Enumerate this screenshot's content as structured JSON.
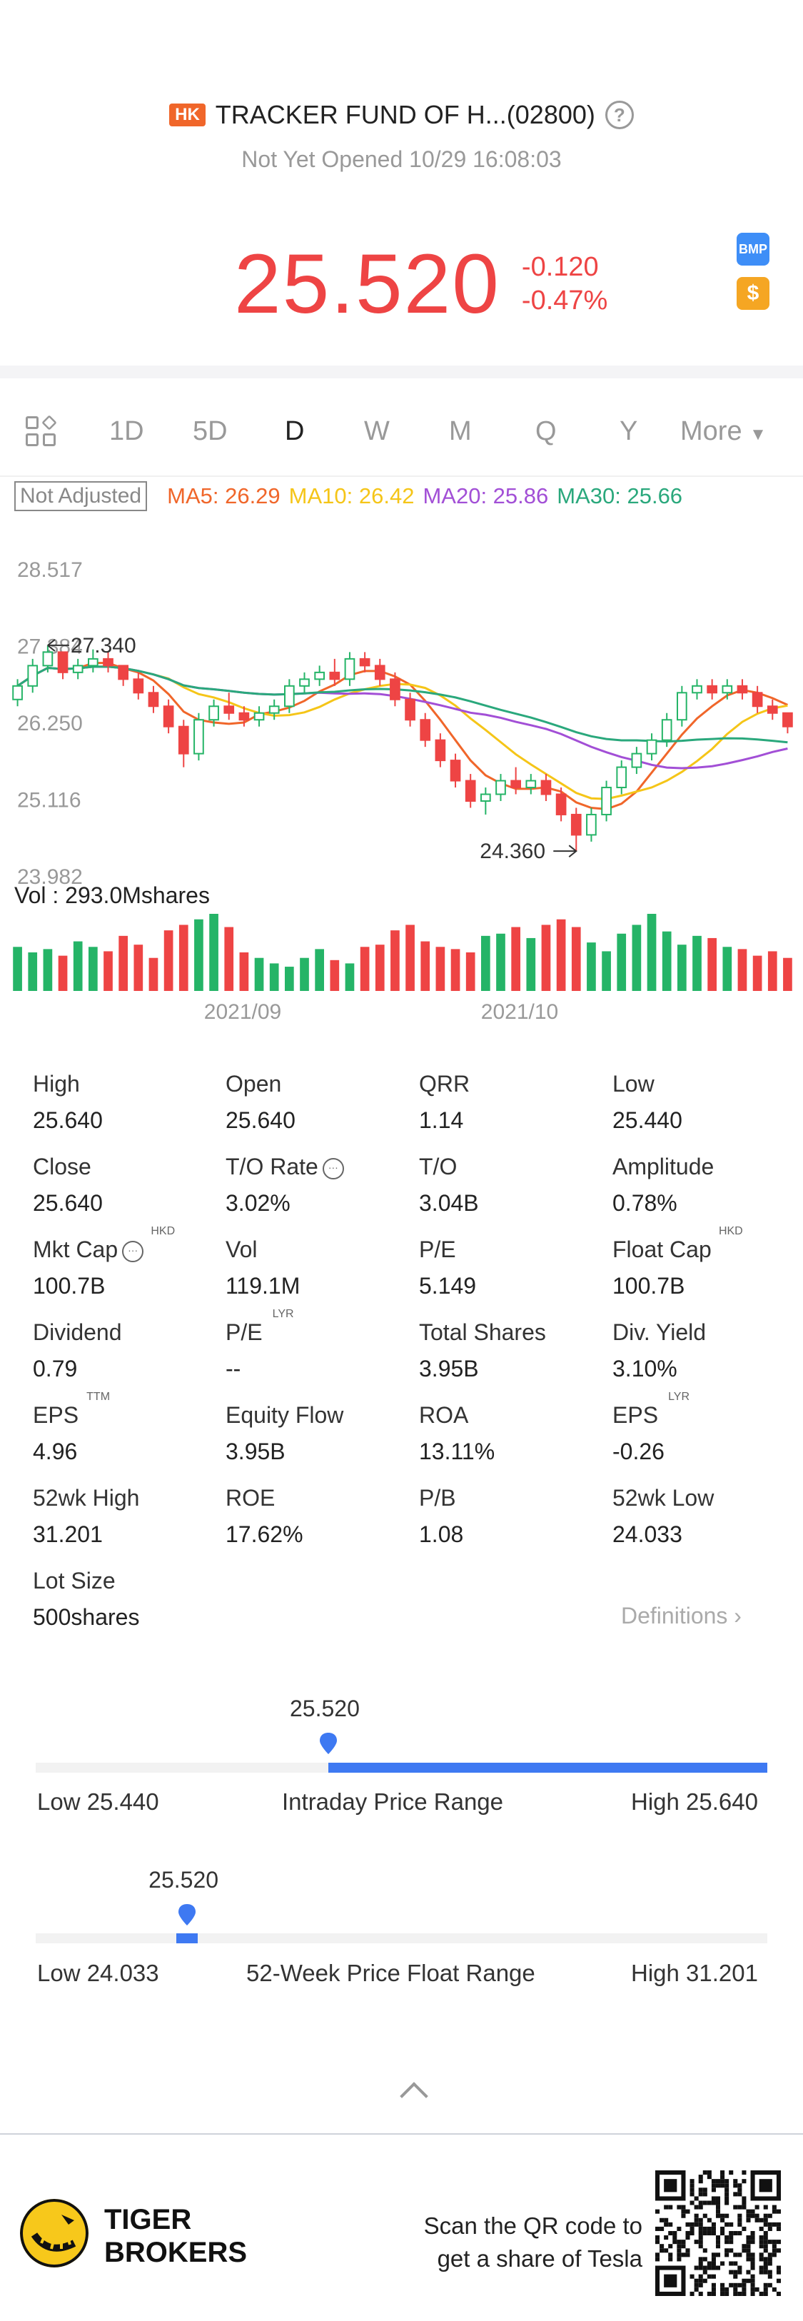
{
  "header": {
    "market_badge": "HK",
    "title": "TRACKER FUND OF H...(02800)",
    "status": "Not Yet Opened 10/29 16:08:03",
    "price": "25.520",
    "change": "-0.120",
    "change_pct": "-0.47%",
    "badge_bmp": "BMP",
    "badge_dollar": "$"
  },
  "tabs": {
    "items": [
      "1D",
      "5D",
      "D",
      "W",
      "M",
      "Q",
      "Y"
    ],
    "active": "D",
    "more": "More"
  },
  "ma": {
    "adjust_label": "Not Adjusted",
    "ma5": "MA5: 26.29",
    "ma10": "MA10: 26.42",
    "ma20": "MA20: 25.86",
    "ma30": "MA30: 25.66",
    "colors": {
      "ma5": "#f0662a",
      "ma10": "#f5c518",
      "ma20": "#a24fd6",
      "ma30": "#2aa87c"
    }
  },
  "chart_data": {
    "type": "candlestick",
    "y_ticks": [
      "28.517",
      "27.384",
      "26.250",
      "25.116",
      "23.982"
    ],
    "x_ticks": [
      "2021/09",
      "2021/10"
    ],
    "high_annotation": "27.340",
    "low_annotation": "24.360",
    "ylim": [
      23.982,
      28.517
    ],
    "candles": [
      [
        26.6,
        26.9,
        26.5,
        26.8
      ],
      [
        26.8,
        27.2,
        26.7,
        27.1
      ],
      [
        27.1,
        27.4,
        27.0,
        27.3
      ],
      [
        27.3,
        27.3,
        26.9,
        27.0
      ],
      [
        27.0,
        27.2,
        26.9,
        27.1
      ],
      [
        27.1,
        27.34,
        27.0,
        27.2
      ],
      [
        27.2,
        27.3,
        27.0,
        27.1
      ],
      [
        27.1,
        27.1,
        26.8,
        26.9
      ],
      [
        26.9,
        27.0,
        26.6,
        26.7
      ],
      [
        26.7,
        26.8,
        26.4,
        26.5
      ],
      [
        26.5,
        26.6,
        26.1,
        26.2
      ],
      [
        26.2,
        26.3,
        25.6,
        25.8
      ],
      [
        25.8,
        26.4,
        25.7,
        26.3
      ],
      [
        26.3,
        26.6,
        26.2,
        26.5
      ],
      [
        26.5,
        26.7,
        26.3,
        26.4
      ],
      [
        26.4,
        26.5,
        26.2,
        26.3
      ],
      [
        26.3,
        26.5,
        26.2,
        26.4
      ],
      [
        26.4,
        26.6,
        26.3,
        26.5
      ],
      [
        26.5,
        26.9,
        26.4,
        26.8
      ],
      [
        26.8,
        27.0,
        26.7,
        26.9
      ],
      [
        26.9,
        27.1,
        26.8,
        27.0
      ],
      [
        27.0,
        27.2,
        26.8,
        26.9
      ],
      [
        26.9,
        27.3,
        26.8,
        27.2
      ],
      [
        27.2,
        27.3,
        27.0,
        27.1
      ],
      [
        27.1,
        27.2,
        26.8,
        26.9
      ],
      [
        26.9,
        27.0,
        26.5,
        26.6
      ],
      [
        26.6,
        26.7,
        26.2,
        26.3
      ],
      [
        26.3,
        26.4,
        25.9,
        26.0
      ],
      [
        26.0,
        26.1,
        25.6,
        25.7
      ],
      [
        25.7,
        25.8,
        25.3,
        25.4
      ],
      [
        25.4,
        25.5,
        25.0,
        25.1
      ],
      [
        25.1,
        25.3,
        24.9,
        25.2
      ],
      [
        25.2,
        25.5,
        25.1,
        25.4
      ],
      [
        25.4,
        25.6,
        25.2,
        25.3
      ],
      [
        25.3,
        25.5,
        25.2,
        25.4
      ],
      [
        25.4,
        25.5,
        25.1,
        25.2
      ],
      [
        25.2,
        25.3,
        24.8,
        24.9
      ],
      [
        24.9,
        25.0,
        24.36,
        24.6
      ],
      [
        24.6,
        25.0,
        24.5,
        24.9
      ],
      [
        24.9,
        25.4,
        24.8,
        25.3
      ],
      [
        25.3,
        25.7,
        25.2,
        25.6
      ],
      [
        25.6,
        25.9,
        25.5,
        25.8
      ],
      [
        25.8,
        26.1,
        25.7,
        26.0
      ],
      [
        26.0,
        26.4,
        25.9,
        26.3
      ],
      [
        26.3,
        26.8,
        26.2,
        26.7
      ],
      [
        26.7,
        26.9,
        26.6,
        26.8
      ],
      [
        26.8,
        26.9,
        26.6,
        26.7
      ],
      [
        26.7,
        26.9,
        26.6,
        26.8
      ],
      [
        26.8,
        26.9,
        26.6,
        26.7
      ],
      [
        26.7,
        26.8,
        26.4,
        26.5
      ],
      [
        26.5,
        26.6,
        26.3,
        26.4
      ],
      [
        26.4,
        26.4,
        26.1,
        26.2
      ]
    ],
    "volume_label": "Vol  : 293.0Mshares",
    "volumes": [
      40,
      35,
      38,
      32,
      45,
      40,
      36,
      50,
      42,
      30,
      55,
      60,
      65,
      70,
      58,
      35,
      30,
      25,
      22,
      30,
      38,
      28,
      25,
      40,
      42,
      55,
      60,
      45,
      40,
      38,
      35,
      50,
      52,
      58,
      48,
      60,
      65,
      58,
      44,
      36,
      52,
      60,
      70,
      54,
      42,
      50,
      48,
      40,
      38,
      32,
      36,
      30
    ]
  },
  "stats": [
    {
      "label": "High",
      "value": "25.640"
    },
    {
      "label": "Open",
      "value": "25.640"
    },
    {
      "label": "QRR",
      "value": "1.14"
    },
    {
      "label": "Low",
      "value": "25.440"
    },
    {
      "label": "Close",
      "value": "25.640"
    },
    {
      "label": "T/O Rate",
      "value": "3.02%",
      "info": true
    },
    {
      "label": "T/O",
      "value": "3.04B"
    },
    {
      "label": "Amplitude",
      "value": "0.78%"
    },
    {
      "label": "Mkt Cap",
      "value": "100.7B",
      "sup": "HKD",
      "info": true
    },
    {
      "label": "Vol",
      "value": "119.1M"
    },
    {
      "label": "P/E",
      "value": "5.149"
    },
    {
      "label": "Float Cap",
      "value": "100.7B",
      "sup": "HKD"
    },
    {
      "label": "Dividend",
      "value": "0.79"
    },
    {
      "label": "P/E",
      "value": "--",
      "sup": "LYR"
    },
    {
      "label": "Total Shares",
      "value": "3.95B"
    },
    {
      "label": "Div. Yield",
      "value": "3.10%"
    },
    {
      "label": "EPS",
      "value": "4.96",
      "sup": "TTM"
    },
    {
      "label": "Equity Flow",
      "value": "3.95B"
    },
    {
      "label": "ROA",
      "value": "13.11%"
    },
    {
      "label": "EPS",
      "value": "-0.26",
      "sup": "LYR"
    },
    {
      "label": "52wk High",
      "value": "31.201"
    },
    {
      "label": "ROE",
      "value": "17.62%"
    },
    {
      "label": "P/B",
      "value": "1.08"
    },
    {
      "label": "52wk Low",
      "value": "24.033"
    },
    {
      "label": "Lot Size",
      "value": "500shares"
    }
  ],
  "definitions": "Definitions",
  "intraday": {
    "current": "25.520",
    "low": "Low 25.440",
    "title": "Intraday Price Range",
    "high": "High 25.640",
    "fraction": 0.4
  },
  "week52": {
    "current": "25.520",
    "low": "Low 24.033",
    "title": "52-Week Price Float Range",
    "high": "High 31.201",
    "fraction": 0.207
  },
  "footer": {
    "brand_line1": "TIGER",
    "brand_line2": "BROKERS",
    "qr_line1": "Scan the QR code to",
    "qr_line2": "get a share of Tesla"
  }
}
